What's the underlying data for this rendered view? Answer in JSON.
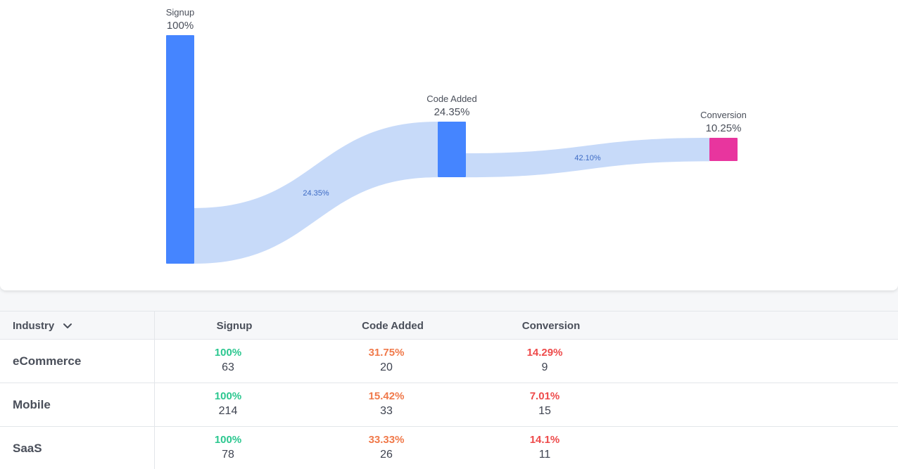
{
  "chart_data": {
    "type": "funnel",
    "steps": [
      {
        "name": "Signup",
        "percent_label": "100%",
        "value": 100,
        "color": "#4585ff"
      },
      {
        "name": "Code Added",
        "percent_label": "24.35%",
        "value": 24.35,
        "color": "#4585ff"
      },
      {
        "name": "Conversion",
        "percent_label": "10.25%",
        "value": 10.25,
        "color": "#e8359e"
      }
    ],
    "flows": [
      {
        "from": "Signup",
        "to": "Code Added",
        "label": "24.35%"
      },
      {
        "from": "Code Added",
        "to": "Conversion",
        "label": "42.10%"
      }
    ],
    "flow_color": "#c7daf9"
  },
  "table": {
    "dimension_header": "Industry",
    "dimension_icon": "chevron-down-icon",
    "columns": [
      "Signup",
      "Code Added",
      "Conversion"
    ],
    "rows": [
      {
        "label": "eCommerce",
        "cells": [
          {
            "pct": "100%",
            "count": "63",
            "status": "green"
          },
          {
            "pct": "31.75%",
            "count": "20",
            "status": "orange"
          },
          {
            "pct": "14.29%",
            "count": "9",
            "status": "red"
          }
        ]
      },
      {
        "label": "Mobile",
        "cells": [
          {
            "pct": "100%",
            "count": "214",
            "status": "green"
          },
          {
            "pct": "15.42%",
            "count": "33",
            "status": "orange"
          },
          {
            "pct": "7.01%",
            "count": "15",
            "status": "red"
          }
        ]
      },
      {
        "label": "SaaS",
        "cells": [
          {
            "pct": "100%",
            "count": "78",
            "status": "green"
          },
          {
            "pct": "33.33%",
            "count": "26",
            "status": "orange"
          },
          {
            "pct": "14.1%",
            "count": "11",
            "status": "red"
          }
        ]
      }
    ]
  },
  "colors": {
    "green": "#2bc78f",
    "orange": "#f0794a",
    "red": "#ee4a4a"
  }
}
